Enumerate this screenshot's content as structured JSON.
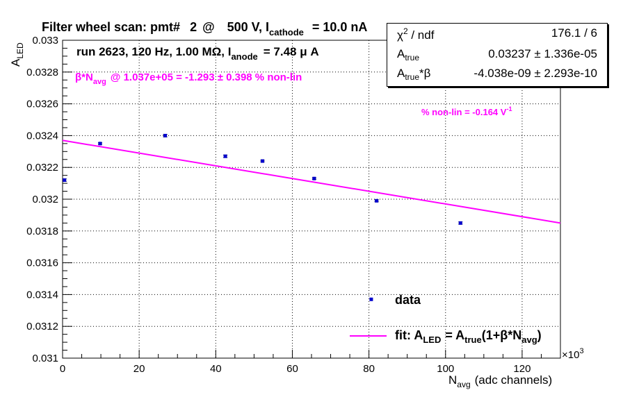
{
  "title": {
    "prefix": "Filter wheel scan: pmt#",
    "pmt": "2",
    "at": "@",
    "voltage": "500 V, I",
    "sub": "cathode",
    "value": "= 10.0 nA"
  },
  "runinfo": {
    "text": "run 2623, 120 Hz, 1.00 MΩ, I",
    "sub": "anode",
    "value": "= 7.48 μ A"
  },
  "nonlin": {
    "beta": "β*N",
    "sub": "avg",
    "text": "@ 1.037e+05 = -1.293 ± 0.398 % non-lin"
  },
  "slope": {
    "text": "% non-lin = -0.164 V",
    "sup": "-1"
  },
  "stats": {
    "chi2_name": "χ",
    "chi2_sup": "2",
    "chi2_rest": "/ ndf",
    "chi2_value": "176.1 / 6",
    "atrue_name": "A",
    "atrue_sub": "true",
    "atrue_value": "0.03237 ± 1.336e-05",
    "atb_name": "A",
    "atb_sub": "true",
    "atb_rest": "*β",
    "atb_value": "-4.038e-09 ± 2.293e-10"
  },
  "legend": {
    "data_label": "data",
    "fit_label": "fit: A",
    "fit_sub1": "LED",
    "fit_mid": "= A",
    "fit_sub2": "true",
    "fit_rest": "(1+β*N",
    "fit_sub3": "avg",
    "fit_end": ")"
  },
  "axes": {
    "ylabel_main": "A",
    "ylabel_sub": "LED",
    "xlabel_main": "N",
    "xlabel_sub": "avg",
    "xlabel_rest": "(adc channels)",
    "x_multiplier_base": "×10",
    "x_multiplier_exp": "3"
  },
  "colors": {
    "marker": "#0000cc",
    "fit": "#ff00ff",
    "annotation": "#ff00ff",
    "grid": "#000000"
  },
  "chart_data": {
    "type": "scatter",
    "xlabel": "N_avg (adc channels)",
    "ylabel": "A_LED",
    "x_units_multiplier": 1000,
    "xlim": [
      0,
      130
    ],
    "ylim": [
      0.031,
      0.033
    ],
    "grid": true,
    "x_ticks": [
      0,
      20,
      40,
      60,
      80,
      100,
      120
    ],
    "y_ticks": [
      0.031,
      0.0312,
      0.0314,
      0.0316,
      0.0318,
      0.032,
      0.0322,
      0.0324,
      0.0326,
      0.0328,
      0.033
    ],
    "x_tick_labels": [
      "0",
      "20",
      "40",
      "60",
      "80",
      "100",
      "120"
    ],
    "y_tick_labels": [
      "0.031",
      "0.0312",
      "0.0314",
      "0.0316",
      "0.0318",
      "0.032",
      "0.0322",
      "0.0324",
      "0.0326",
      "0.0328",
      "0.033"
    ],
    "series": [
      {
        "name": "data",
        "points": [
          {
            "x": 0.5,
            "y": 0.03212,
            "err": 8e-06
          },
          {
            "x": 9.8,
            "y": 0.03235,
            "err": 5e-06
          },
          {
            "x": 26.8,
            "y": 0.0324,
            "err": 8e-06
          },
          {
            "x": 42.5,
            "y": 0.03227,
            "err": 8e-06
          },
          {
            "x": 52.2,
            "y": 0.03224,
            "err": 5e-06
          },
          {
            "x": 65.7,
            "y": 0.03213,
            "err": 5e-06
          },
          {
            "x": 82.0,
            "y": 0.03199,
            "err": 6e-06
          },
          {
            "x": 103.9,
            "y": 0.03185,
            "err": 7e-06
          }
        ]
      },
      {
        "name": "fit",
        "x": [
          0,
          130
        ],
        "y": [
          0.03237,
          0.03185
        ]
      }
    ],
    "legend_marker": {
      "x": 80.6,
      "y": 0.03137
    }
  }
}
